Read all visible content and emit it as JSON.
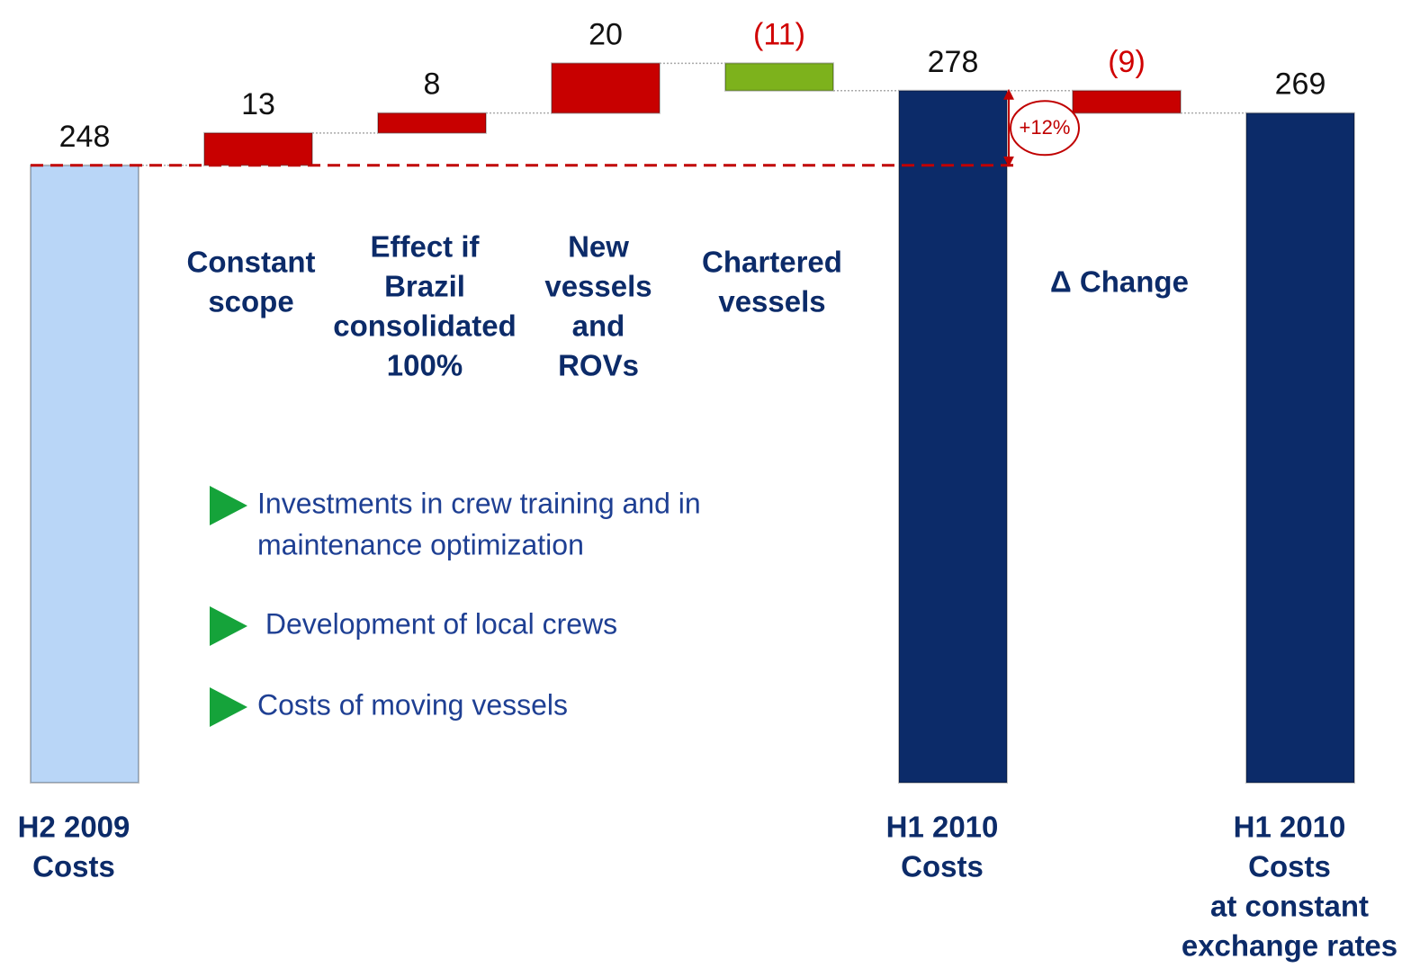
{
  "chart_data": {
    "type": "waterfall",
    "categories": [
      [
        "H2 2009",
        "Costs"
      ],
      [
        "Constant",
        "scope"
      ],
      [
        "Effect if",
        "Brazil",
        "consolidated",
        "100%"
      ],
      [
        "New",
        "vessels",
        "and",
        "ROVs"
      ],
      [
        "Chartered",
        "vessels"
      ],
      [
        "H1 2010",
        "Costs"
      ],
      [
        "Δ Change"
      ],
      [
        "H1 2010",
        "Costs",
        "at constant",
        "exchange rates"
      ]
    ],
    "values": [
      248,
      13,
      8,
      20,
      -11,
      278,
      -9,
      269
    ],
    "value_labels": [
      "248",
      "13",
      "8",
      "20",
      "(11)",
      "278",
      "(9)",
      "269"
    ],
    "kinds": [
      "total",
      "delta",
      "delta",
      "delta",
      "delta",
      "total",
      "delta",
      "total"
    ],
    "colors": [
      "#b9d6f7",
      "#c80000",
      "#c80000",
      "#c80000",
      "#7db21c",
      "#0c2b69",
      "#c80000",
      "#0c2b69"
    ],
    "annotation": "+12%",
    "notes": [
      [
        "Investments in crew training and in",
        "maintenance optimization"
      ],
      [
        " Development of local crews"
      ],
      [
        "Costs of moving vessels"
      ]
    ]
  }
}
